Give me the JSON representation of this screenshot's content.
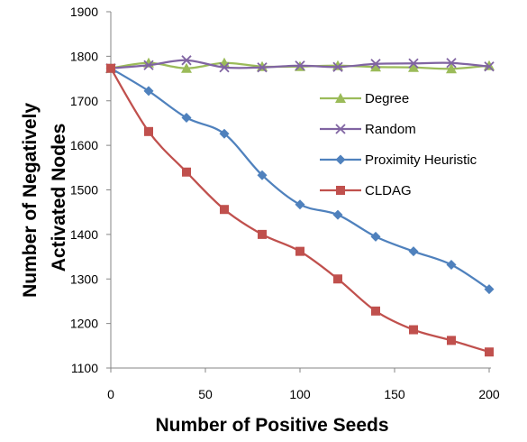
{
  "chart_data": {
    "type": "line",
    "title": "",
    "xlabel": "Number of Positive Seeds",
    "ylabel_lines": [
      "Number of Negatively",
      "Activated Nodes"
    ],
    "xlim": [
      0,
      200
    ],
    "ylim": [
      1100,
      1900
    ],
    "xticks": [
      0,
      50,
      100,
      150,
      200
    ],
    "yticks": [
      1100,
      1200,
      1300,
      1400,
      1500,
      1600,
      1700,
      1800,
      1900
    ],
    "grid": false,
    "legend_position": "right",
    "x": [
      0,
      20,
      40,
      60,
      80,
      100,
      120,
      140,
      160,
      180,
      200
    ],
    "series": [
      {
        "name": "Degree",
        "color": "#9BBB59",
        "marker": "triangle",
        "values": [
          1773,
          1785,
          1773,
          1785,
          1777,
          1777,
          1779,
          1776,
          1775,
          1772,
          1779
        ]
      },
      {
        "name": "Random",
        "color": "#8064A2",
        "marker": "x",
        "values": [
          1773,
          1780,
          1791,
          1775,
          1775,
          1779,
          1776,
          1783,
          1784,
          1785,
          1777
        ]
      },
      {
        "name": "Proximity Heuristic",
        "color": "#4F81BD",
        "marker": "diamond",
        "values": [
          1773,
          1722,
          1662,
          1626,
          1533,
          1467,
          1444,
          1395,
          1362,
          1332,
          1277
        ]
      },
      {
        "name": "CLDAG",
        "color": "#C0504D",
        "marker": "square",
        "values": [
          1773,
          1631,
          1540,
          1456,
          1400,
          1362,
          1300,
          1228,
          1186,
          1162,
          1136
        ]
      }
    ]
  }
}
